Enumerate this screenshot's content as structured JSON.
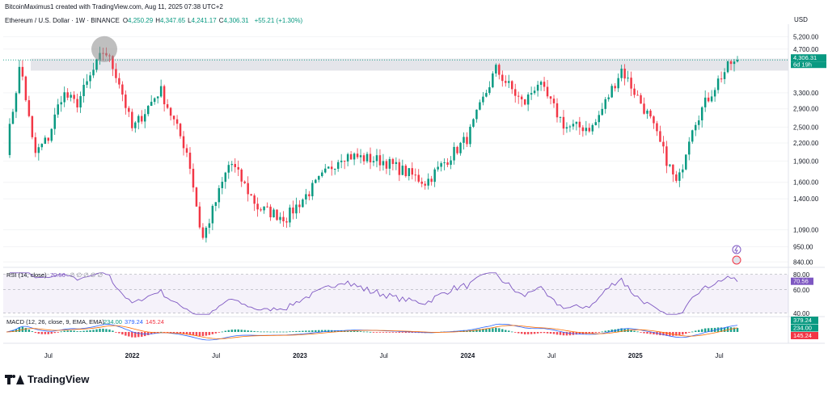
{
  "header": {
    "credit": "BitcoinMaximus1 created with TradingView.com, Aug 11, 2025 07:38 UTC+2",
    "symbol": "Ethereum / U.S. Dollar · 1W · BINANCE",
    "ohlc": [
      {
        "label": "O",
        "value": "4,250.29"
      },
      {
        "label": "H",
        "value": "4,347.65"
      },
      {
        "label": "L",
        "value": "4,241.17"
      },
      {
        "label": "C",
        "value": "4,306.31"
      }
    ],
    "change": "+55.21 (+1.30%)"
  },
  "currency": "USD",
  "price_axis": {
    "ticks": [
      "5,200.00",
      "4,700.00",
      "3,300.00",
      "2,900.00",
      "2,500.00",
      "2,200.00",
      "1,900.00",
      "1,600.00",
      "1,400.00",
      "1,090.00",
      "950.00",
      "840.00"
    ],
    "current_price": "4,306.31",
    "countdown": "6d 19h"
  },
  "rsi": {
    "label": "RSI (14, close)",
    "value_text": "70.56",
    "placeholders": "∅ ∅ ∅ ∅ ∅",
    "ticks": [
      "80.00",
      "60.00",
      "40.00"
    ],
    "badge": "70.56"
  },
  "macd": {
    "label": "MACD (12, 26, close, 9, EMA, EMA)",
    "values": [
      {
        "text": "234.00",
        "color": "#089981"
      },
      {
        "text": "379.24",
        "color": "#2962ff"
      },
      {
        "text": "145.24",
        "color": "#f23645"
      }
    ],
    "badges": [
      {
        "text": "379.24",
        "color": "#089981"
      },
      {
        "text": "234.00",
        "color": "#089981"
      },
      {
        "text": "145.24",
        "color": "#f23645"
      }
    ]
  },
  "time_axis": [
    {
      "label": "Jul",
      "bold": false
    },
    {
      "label": "2022",
      "bold": true
    },
    {
      "label": "Jul",
      "bold": false
    },
    {
      "label": "2023",
      "bold": true
    },
    {
      "label": "Jul",
      "bold": false
    },
    {
      "label": "2024",
      "bold": true
    },
    {
      "label": "Jul",
      "bold": false
    },
    {
      "label": "2025",
      "bold": true
    },
    {
      "label": "Jul",
      "bold": false
    }
  ],
  "brand": "TradingView",
  "colors": {
    "up": "#089981",
    "down": "#f23645",
    "resistance_zone": "#dfe1e6",
    "highlight_circle": "#8a8a8a",
    "rsi_line": "#7e57c2",
    "macd_line": "#2962ff",
    "signal_line": "#ff6d00"
  },
  "chart_data": {
    "type": "candlestick",
    "title": "Ethereum / U.S. Dollar · 1W · BINANCE",
    "ylabel": "USD",
    "y_scale": "log",
    "ylim": [
      820,
      5600
    ],
    "resistance_zone": [
      3950,
      4350
    ],
    "highlight": "2021 all-time high",
    "x_period_labels": [
      "Jul",
      "2022",
      "Jul",
      "2023",
      "Jul",
      "2024",
      "Jul",
      "2025",
      "Jul"
    ],
    "weekly_close_anchors": [
      {
        "period": "2021-04",
        "close": 2100
      },
      {
        "period": "2021-05",
        "close": 4200
      },
      {
        "period": "2021-06",
        "close": 2000
      },
      {
        "period": "2021-07",
        "close": 2300
      },
      {
        "period": "2021-08",
        "close": 3300
      },
      {
        "period": "2021-09",
        "close": 3000
      },
      {
        "period": "2021-11",
        "close": 4700
      },
      {
        "period": "2021-12",
        "close": 3700
      },
      {
        "period": "2022-01",
        "close": 2450
      },
      {
        "period": "2022-03",
        "close": 3400
      },
      {
        "period": "2022-05",
        "close": 2000
      },
      {
        "period": "2022-06",
        "close": 1000
      },
      {
        "period": "2022-08",
        "close": 1900
      },
      {
        "period": "2022-10",
        "close": 1300
      },
      {
        "period": "2022-12",
        "close": 1200
      },
      {
        "period": "2023-04",
        "close": 2000
      },
      {
        "period": "2023-07",
        "close": 1900
      },
      {
        "period": "2023-10",
        "close": 1600
      },
      {
        "period": "2024-01",
        "close": 2300
      },
      {
        "period": "2024-03",
        "close": 4000
      },
      {
        "period": "2024-05",
        "close": 3000
      },
      {
        "period": "2024-06",
        "close": 3600
      },
      {
        "period": "2024-08",
        "close": 2500
      },
      {
        "period": "2024-10",
        "close": 2500
      },
      {
        "period": "2024-12",
        "close": 4000
      },
      {
        "period": "2025-02",
        "close": 2700
      },
      {
        "period": "2025-04",
        "close": 1550
      },
      {
        "period": "2025-05",
        "close": 2500
      },
      {
        "period": "2025-07",
        "close": 3700
      },
      {
        "period": "2025-08",
        "close": 4306.31
      }
    ],
    "rsi_levels": [
      80,
      60,
      40
    ],
    "rsi_last": 70.56,
    "macd_last": {
      "macd": 379.24,
      "signal": 234.0,
      "histogram": 145.24
    }
  }
}
